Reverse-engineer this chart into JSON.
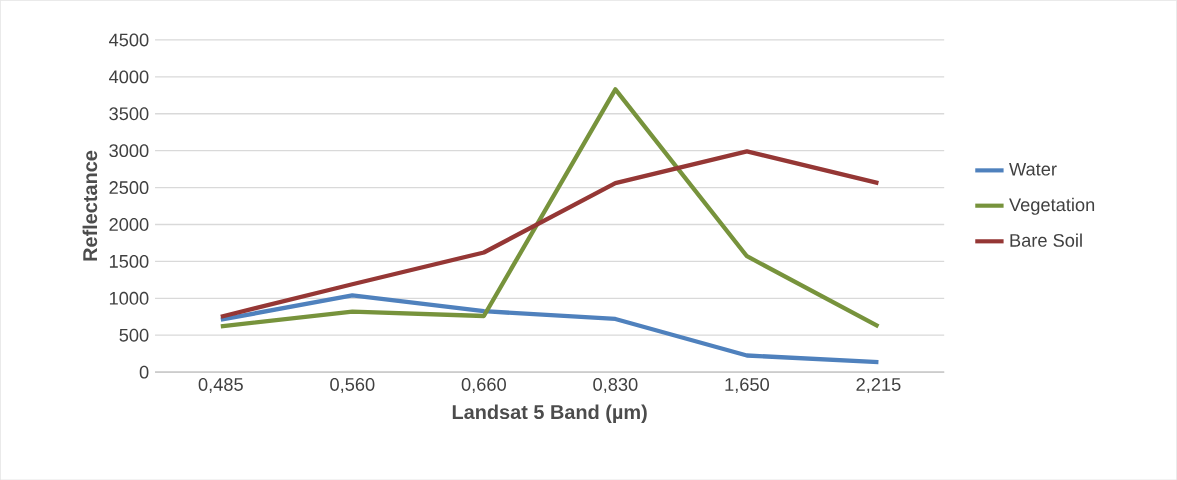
{
  "chart_data": {
    "type": "line",
    "xlabel": "Landsat 5 Band (µm)",
    "ylabel": "Reflectance",
    "categories": [
      "0,485",
      "0,560",
      "0,660",
      "0,830",
      "1,650",
      "2,215"
    ],
    "series": [
      {
        "name": "Water",
        "color": "#4f81bd",
        "values": [
          710,
          1040,
          825,
          720,
          225,
          135
        ]
      },
      {
        "name": "Vegetation",
        "color": "#77933c",
        "values": [
          620,
          820,
          760,
          3830,
          1570,
          620
        ]
      },
      {
        "name": "Bare Soil",
        "color": "#953735",
        "values": [
          750,
          1190,
          1620,
          2560,
          2990,
          2560
        ]
      }
    ],
    "ylim": [
      0,
      4500
    ],
    "yticks": [
      0,
      500,
      1000,
      1500,
      2000,
      2500,
      3000,
      3500,
      4000,
      4500
    ],
    "grid": "y",
    "legend": "right",
    "marker": "none",
    "line_style": "solid"
  }
}
